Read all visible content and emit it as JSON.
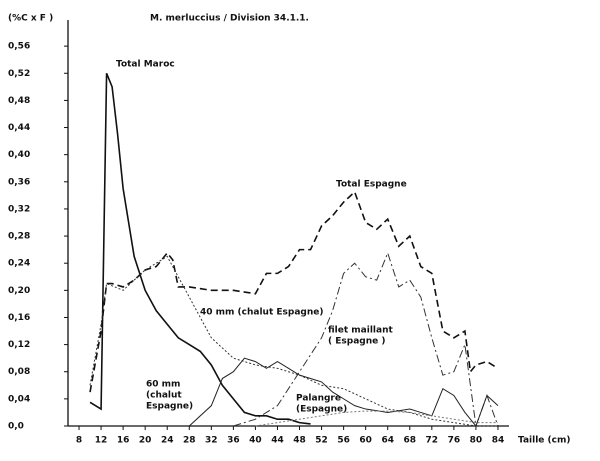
{
  "chart_data": {
    "type": "line",
    "title": "M. merluccius / Division 34.1.1.",
    "y_label": "(%C x F )",
    "x_label": "Taille (cm)",
    "xlim": [
      6,
      86
    ],
    "xticks": [
      8,
      12,
      16,
      20,
      24,
      28,
      32,
      36,
      40,
      44,
      48,
      52,
      56,
      60,
      64,
      68,
      72,
      76,
      80,
      84
    ],
    "ylim": [
      0,
      0.6
    ],
    "yticks": [
      {
        "value": 0,
        "label": "0,0"
      },
      {
        "value": 0.04,
        "label": "0,04"
      },
      {
        "value": 0.08,
        "label": "0,08"
      },
      {
        "value": 0.12,
        "label": "0,12"
      },
      {
        "value": 0.16,
        "label": "0,16"
      },
      {
        "value": 0.2,
        "label": "0,20"
      },
      {
        "value": 0.24,
        "label": "0,24"
      },
      {
        "value": 0.28,
        "label": "0,28"
      },
      {
        "value": 0.32,
        "label": "0,32"
      },
      {
        "value": 0.36,
        "label": "0,36"
      },
      {
        "value": 0.4,
        "label": "0,40"
      },
      {
        "value": 0.44,
        "label": "0,44"
      },
      {
        "value": 0.48,
        "label": "0,48"
      },
      {
        "value": 0.52,
        "label": "0,52"
      },
      {
        "value": 0.56,
        "label": "0,56"
      }
    ],
    "grid": false,
    "series": [
      {
        "color": "#111111",
        "style": "solid",
        "width": 1.6,
        "x": [
          10,
          12,
          13,
          14,
          15,
          16,
          18,
          20,
          22,
          24,
          26,
          28,
          30,
          32,
          34,
          36,
          38,
          40,
          42,
          44,
          46,
          48,
          50
        ],
        "values": [
          0.035,
          0.025,
          0.52,
          0.5,
          0.43,
          0.35,
          0.25,
          0.2,
          0.17,
          0.15,
          0.13,
          0.12,
          0.11,
          0.09,
          0.06,
          0.04,
          0.02,
          0.015,
          0.015,
          0.01,
          0.01,
          0.005,
          0.003
        ]
      },
      {
        "color": "#111111",
        "style": "dashed",
        "width": 1.6,
        "x": [
          10,
          12,
          13,
          14,
          16,
          18,
          20,
          22,
          24,
          25,
          26,
          28,
          32,
          36,
          40,
          42,
          44,
          46,
          48,
          50,
          52,
          54,
          56,
          58,
          60,
          62,
          64,
          66,
          68,
          70,
          72,
          74,
          76,
          78,
          79,
          80,
          82,
          84
        ],
        "values": [
          0.05,
          0.14,
          0.21,
          0.21,
          0.205,
          0.215,
          0.23,
          0.235,
          0.255,
          0.245,
          0.205,
          0.205,
          0.2,
          0.2,
          0.195,
          0.225,
          0.225,
          0.235,
          0.26,
          0.26,
          0.295,
          0.31,
          0.33,
          0.345,
          0.3,
          0.29,
          0.305,
          0.265,
          0.28,
          0.235,
          0.225,
          0.14,
          0.13,
          0.14,
          0.08,
          0.09,
          0.095,
          0.085
        ]
      },
      {
        "color": "#333333",
        "style": "dotted",
        "width": 1,
        "x": [
          10,
          12,
          13,
          16,
          20,
          24,
          28,
          32,
          36,
          40,
          44,
          48,
          52,
          56,
          60,
          64,
          68,
          72,
          76,
          80,
          84
        ],
        "values": [
          0.06,
          0.15,
          0.21,
          0.2,
          0.23,
          0.25,
          0.19,
          0.13,
          0.1,
          0.09,
          0.085,
          0.075,
          0.06,
          0.055,
          0.04,
          0.025,
          0.02,
          0.01,
          0.005,
          0,
          0
        ]
      },
      {
        "color": "#333333",
        "style": "dashdot",
        "width": 1,
        "x": [
          36,
          40,
          44,
          48,
          52,
          54,
          56,
          58,
          60,
          62,
          64,
          66,
          68,
          70,
          72,
          74,
          76,
          78,
          80,
          82,
          84
        ],
        "values": [
          0,
          0.01,
          0.03,
          0.08,
          0.13,
          0.17,
          0.225,
          0.24,
          0.22,
          0.215,
          0.255,
          0.205,
          0.215,
          0.19,
          0.13,
          0.075,
          0.08,
          0.12,
          0,
          0.045,
          0
        ]
      },
      {
        "color": "#222222",
        "style": "solid",
        "width": 1,
        "x": [
          28,
          32,
          34,
          36,
          38,
          40,
          42,
          44,
          46,
          48,
          50,
          52,
          54,
          56,
          58,
          60,
          64,
          68,
          70,
          72,
          74,
          76,
          78,
          80,
          82,
          84
        ],
        "values": [
          0,
          0.03,
          0.07,
          0.08,
          0.1,
          0.095,
          0.085,
          0.095,
          0.085,
          0.075,
          0.07,
          0.065,
          0.05,
          0.04,
          0.03,
          0.025,
          0.02,
          0.025,
          0.02,
          0.015,
          0.055,
          0.045,
          0.02,
          0,
          0.045,
          0.03
        ]
      },
      {
        "color": "#777777",
        "style": "dotted",
        "width": 1,
        "x": [
          40,
          44,
          48,
          52,
          56,
          60,
          64,
          68,
          72,
          76,
          80,
          84
        ],
        "values": [
          0,
          0.005,
          0.01,
          0.015,
          0.02,
          0.022,
          0.022,
          0.02,
          0.015,
          0.01,
          0.005,
          0.005
        ]
      }
    ],
    "annotations": [
      {
        "lines": [
          "Total Maroc"
        ]
      },
      {
        "lines": [
          "Total Espagne"
        ]
      },
      {
        "lines": [
          "40 mm (chalut Espagne)"
        ]
      },
      {
        "lines": [
          "filet maillant",
          "( Espagne )"
        ]
      },
      {
        "lines": [
          "60 mm",
          "(chalut",
          "Espagne)"
        ]
      },
      {
        "lines": [
          "Palangre",
          "(Espagne)"
        ]
      }
    ]
  }
}
